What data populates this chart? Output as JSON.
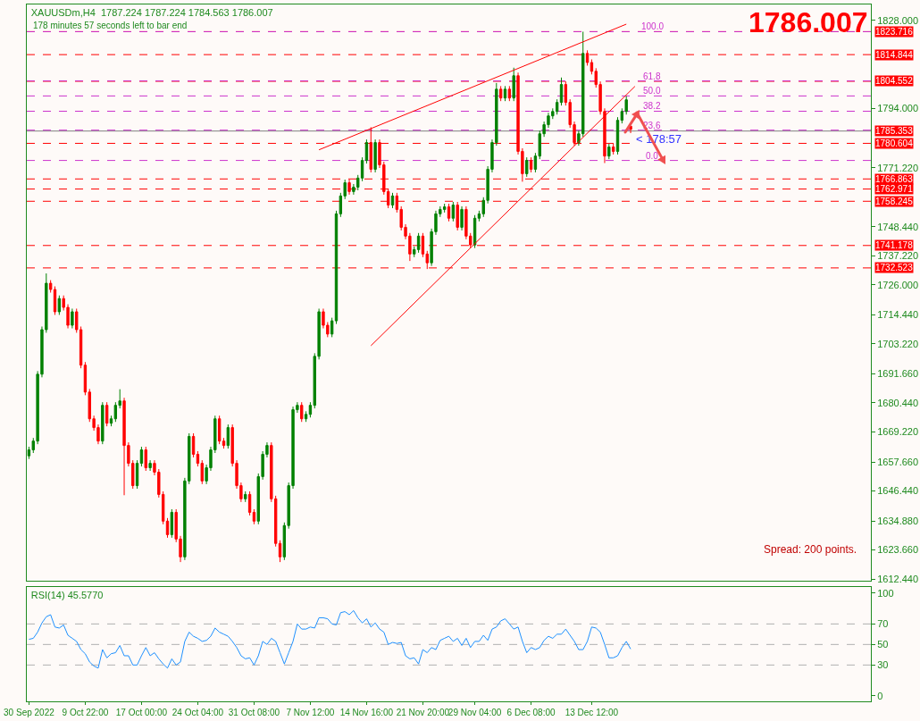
{
  "chart_data": [
    {
      "type": "candlestick",
      "title": "XAUUSDm,H4  1787.224 1787.224 1784.563 1786.007",
      "subtitle": "178 minutes 57 seconds left to bar end",
      "categories": [
        null,
        null,
        null,
        null,
        null,
        null,
        null,
        null,
        null,
        null,
        null,
        null,
        null,
        null,
        null,
        null,
        null,
        null,
        null,
        null,
        null,
        null,
        null,
        null,
        null,
        null,
        null,
        null,
        null,
        null,
        null,
        null,
        null,
        null,
        null,
        null,
        null,
        null,
        null,
        null,
        null,
        null,
        null,
        null,
        null,
        null,
        null,
        null,
        null,
        null,
        null,
        null,
        null,
        null,
        null,
        null,
        null,
        null,
        null,
        null,
        null,
        null,
        null,
        null,
        null,
        null,
        null,
        null,
        null,
        null,
        null,
        null,
        null,
        null,
        null,
        null,
        null,
        null,
        null,
        null,
        null,
        null,
        null,
        null,
        null,
        null,
        null,
        null,
        null,
        null,
        null,
        null,
        null,
        null,
        null,
        null,
        null,
        null,
        null,
        null,
        null,
        null,
        null,
        null,
        null,
        null,
        null,
        null,
        null,
        null,
        null,
        null,
        null,
        null,
        null,
        null,
        null,
        null,
        null,
        null,
        null,
        null,
        null,
        null,
        null,
        null,
        null,
        null,
        null,
        null,
        null,
        null,
        null,
        null,
        null,
        null,
        null,
        null,
        null,
        null,
        null,
        null,
        null,
        null,
        null,
        null,
        null,
        null,
        null,
        null,
        null,
        null,
        null,
        null,
        null,
        null,
        null,
        null,
        null,
        null,
        null,
        null,
        null,
        null,
        null,
        null,
        null,
        null,
        null,
        null,
        null,
        null,
        null,
        null,
        null,
        null,
        null,
        null,
        null,
        null,
        null,
        null,
        null,
        null,
        null,
        null,
        null,
        null,
        null,
        null,
        null,
        null,
        null,
        null,
        null
      ],
      "series": [
        {
          "ohlc": [
            [
              1660.0,
              1663.5,
              1658.8,
              1662.3
            ],
            [
              1662.3,
              1666.9,
              1661.1,
              1665.7
            ],
            [
              1665.7,
              1692.7,
              1664.5,
              1691.5
            ],
            [
              1691.5,
              1709.9,
              1690.3,
              1708.7
            ],
            [
              1708.7,
              1730.4,
              1707.5,
              1726.6
            ],
            [
              1726.6,
              1727.8,
              1723.0,
              1724.2
            ],
            [
              1724.2,
              1725.4,
              1714.4,
              1715.6
            ],
            [
              1715.6,
              1721.9,
              1714.4,
              1720.7
            ],
            [
              1720.7,
              1721.9,
              1716.1,
              1717.3
            ],
            [
              1717.3,
              1718.5,
              1709.2,
              1710.4
            ],
            [
              1710.4,
              1716.8,
              1709.2,
              1715.6
            ],
            [
              1715.6,
              1716.8,
              1707.5,
              1708.7
            ],
            [
              1708.7,
              1709.9,
              1693.8,
              1695.0
            ],
            [
              1695.0,
              1696.2,
              1683.4,
              1684.6
            ],
            [
              1684.6,
              1685.8,
              1673.1,
              1674.3
            ],
            [
              1674.3,
              1675.5,
              1669.7,
              1670.9
            ],
            [
              1670.9,
              1672.1,
              1664.5,
              1665.7
            ],
            [
              1665.7,
              1680.7,
              1664.5,
              1679.5
            ],
            [
              1679.5,
              1680.7,
              1671.4,
              1672.6
            ],
            [
              1672.6,
              1675.5,
              1671.4,
              1674.3
            ],
            [
              1674.3,
              1680.7,
              1673.1,
              1679.5
            ],
            [
              1679.5,
              1685.7,
              1678.3,
              1681.2
            ],
            [
              1681.2,
              1682.4,
              1644.8,
              1664.0
            ],
            [
              1664.0,
              1665.2,
              1655.9,
              1657.1
            ],
            [
              1657.1,
              1658.3,
              1647.3,
              1648.5
            ],
            [
              1648.5,
              1658.3,
              1647.3,
              1657.1
            ],
            [
              1657.1,
              1663.5,
              1655.9,
              1662.3
            ],
            [
              1662.3,
              1663.5,
              1654.2,
              1655.4
            ],
            [
              1655.4,
              1658.3,
              1654.2,
              1657.1
            ],
            [
              1657.1,
              1658.3,
              1652.5,
              1653.7
            ],
            [
              1653.7,
              1654.9,
              1643.9,
              1645.1
            ],
            [
              1645.1,
              1646.3,
              1633.6,
              1634.8
            ],
            [
              1634.8,
              1636.0,
              1628.4,
              1629.6
            ],
            [
              1629.6,
              1639.4,
              1628.4,
              1638.2
            ],
            [
              1638.2,
              1639.4,
              1626.7,
              1627.9
            ],
            [
              1627.9,
              1629.1,
              1619.0,
              1621.0
            ],
            [
              1621.0,
              1651.5,
              1619.8,
              1650.3
            ],
            [
              1650.3,
              1668.7,
              1649.1,
              1667.5
            ],
            [
              1667.5,
              1668.7,
              1659.4,
              1660.6
            ],
            [
              1660.6,
              1661.8,
              1655.9,
              1657.1
            ],
            [
              1657.1,
              1658.3,
              1649.1,
              1650.3
            ],
            [
              1650.3,
              1656.6,
              1649.1,
              1655.4
            ],
            [
              1655.4,
              1663.5,
              1654.2,
              1662.3
            ],
            [
              1662.3,
              1675.5,
              1661.1,
              1674.3
            ],
            [
              1674.3,
              1675.5,
              1664.5,
              1665.7
            ],
            [
              1665.7,
              1666.9,
              1662.8,
              1664.0
            ],
            [
              1664.0,
              1672.1,
              1662.8,
              1670.9
            ],
            [
              1670.9,
              1672.1,
              1655.9,
              1657.1
            ],
            [
              1657.1,
              1658.3,
              1647.3,
              1648.5
            ],
            [
              1648.5,
              1649.7,
              1642.2,
              1643.4
            ],
            [
              1643.4,
              1646.3,
              1642.2,
              1645.1
            ],
            [
              1645.1,
              1646.3,
              1637.0,
              1638.2
            ],
            [
              1638.2,
              1639.4,
              1633.6,
              1634.8
            ],
            [
              1634.8,
              1653.2,
              1633.6,
              1652.0
            ],
            [
              1652.0,
              1661.8,
              1650.8,
              1660.6
            ],
            [
              1660.6,
              1665.2,
              1659.4,
              1664.0
            ],
            [
              1664.0,
              1665.2,
              1642.2,
              1643.4
            ],
            [
              1643.4,
              1644.6,
              1625.0,
              1626.2
            ],
            [
              1626.2,
              1627.4,
              1619.0,
              1621.0
            ],
            [
              1621.0,
              1634.3,
              1619.8,
              1633.1
            ],
            [
              1633.1,
              1649.7,
              1631.9,
              1648.5
            ],
            [
              1648.5,
              1679.0,
              1647.3,
              1677.8
            ],
            [
              1677.8,
              1680.7,
              1676.6,
              1679.5
            ],
            [
              1679.5,
              1680.7,
              1673.1,
              1674.3
            ],
            [
              1674.3,
              1677.2,
              1673.1,
              1676.0
            ],
            [
              1676.0,
              1680.7,
              1674.8,
              1679.5
            ],
            [
              1679.5,
              1699.6,
              1678.3,
              1698.4
            ],
            [
              1698.4,
              1716.8,
              1697.2,
              1715.6
            ],
            [
              1715.6,
              1716.8,
              1709.2,
              1710.4
            ],
            [
              1710.4,
              1711.6,
              1705.8,
              1707.0
            ],
            [
              1707.0,
              1713.3,
              1705.8,
              1712.1
            ],
            [
              1712.1,
              1754.6,
              1710.9,
              1753.4
            ],
            [
              1753.4,
              1761.5,
              1752.2,
              1760.3
            ],
            [
              1760.3,
              1766.6,
              1759.1,
              1765.4
            ],
            [
              1765.4,
              1766.6,
              1760.8,
              1762.0
            ],
            [
              1762.0,
              1764.9,
              1760.8,
              1763.7
            ],
            [
              1763.7,
              1768.4,
              1762.5,
              1767.2
            ],
            [
              1767.2,
              1775.2,
              1766.0,
              1774.0
            ],
            [
              1774.0,
              1782.1,
              1772.8,
              1780.9
            ],
            [
              1780.9,
              1786.8,
              1769.4,
              1770.6
            ],
            [
              1770.6,
              1782.1,
              1769.4,
              1780.9
            ],
            [
              1780.9,
              1782.1,
              1771.1,
              1772.3
            ],
            [
              1772.3,
              1773.5,
              1760.8,
              1762.0
            ],
            [
              1762.0,
              1763.2,
              1755.6,
              1756.8
            ],
            [
              1756.8,
              1761.5,
              1755.6,
              1760.3
            ],
            [
              1760.3,
              1761.5,
              1753.9,
              1755.1
            ],
            [
              1755.1,
              1756.3,
              1747.0,
              1748.2
            ],
            [
              1748.2,
              1749.4,
              1743.6,
              1744.8
            ],
            [
              1744.8,
              1746.0,
              1735.2,
              1737.9
            ],
            [
              1737.9,
              1740.8,
              1736.7,
              1739.6
            ],
            [
              1739.6,
              1746.0,
              1738.4,
              1744.8
            ],
            [
              1744.8,
              1746.0,
              1736.7,
              1737.9
            ],
            [
              1737.9,
              1739.1,
              1732.1,
              1734.5
            ],
            [
              1734.5,
              1747.7,
              1733.3,
              1746.5
            ],
            [
              1746.5,
              1754.6,
              1745.3,
              1753.4
            ],
            [
              1753.4,
              1756.3,
              1752.2,
              1755.1
            ],
            [
              1755.1,
              1757.3,
              1753.9,
              1756.1
            ],
            [
              1756.1,
              1757.3,
              1750.5,
              1751.7
            ],
            [
              1751.7,
              1758.0,
              1750.5,
              1756.8
            ],
            [
              1756.8,
              1758.0,
              1747.0,
              1748.2
            ],
            [
              1748.2,
              1756.3,
              1747.0,
              1755.1
            ],
            [
              1755.1,
              1756.3,
              1743.6,
              1744.8
            ],
            [
              1744.8,
              1746.0,
              1740.2,
              1741.4
            ],
            [
              1741.4,
              1752.9,
              1740.2,
              1751.7
            ],
            [
              1751.7,
              1754.6,
              1750.5,
              1753.4
            ],
            [
              1753.4,
              1759.8,
              1752.2,
              1758.6
            ],
            [
              1758.6,
              1771.8,
              1757.4,
              1770.6
            ],
            [
              1770.6,
              1782.1,
              1769.4,
              1780.9
            ],
            [
              1780.9,
              1803.9,
              1779.7,
              1801.5
            ],
            [
              1801.5,
              1802.7,
              1796.9,
              1798.1
            ],
            [
              1798.1,
              1802.7,
              1796.9,
              1801.5
            ],
            [
              1801.5,
              1802.7,
              1796.9,
              1798.1
            ],
            [
              1798.1,
              1809.8,
              1796.9,
              1806.7
            ],
            [
              1806.7,
              1807.9,
              1776.3,
              1777.5
            ],
            [
              1777.5,
              1778.7,
              1765.8,
              1768.9
            ],
            [
              1768.9,
              1775.2,
              1767.7,
              1774.0
            ],
            [
              1774.0,
              1775.2,
              1769.4,
              1770.6
            ],
            [
              1770.6,
              1776.9,
              1769.4,
              1775.7
            ],
            [
              1775.7,
              1785.5,
              1774.5,
              1784.3
            ],
            [
              1784.3,
              1789.0,
              1783.1,
              1787.8
            ],
            [
              1787.8,
              1792.4,
              1786.6,
              1791.2
            ],
            [
              1791.2,
              1794.1,
              1790.0,
              1792.9
            ],
            [
              1792.9,
              1797.6,
              1791.7,
              1796.4
            ],
            [
              1796.4,
              1806.0,
              1795.2,
              1803.3
            ],
            [
              1803.3,
              1804.5,
              1795.2,
              1796.4
            ],
            [
              1796.4,
              1797.6,
              1786.6,
              1787.8
            ],
            [
              1787.8,
              1789.0,
              1779.7,
              1780.9
            ],
            [
              1780.9,
              1785.5,
              1779.7,
              1784.3
            ],
            [
              1784.3,
              1823.7,
              1783.1,
              1815.3
            ],
            [
              1815.3,
              1816.5,
              1810.6,
              1811.8
            ],
            [
              1811.8,
              1813.0,
              1807.2,
              1808.4
            ],
            [
              1808.4,
              1809.6,
              1802.1,
              1803.3
            ],
            [
              1803.3,
              1804.5,
              1791.7,
              1792.9
            ],
            [
              1792.9,
              1794.1,
              1773.0,
              1775.7
            ],
            [
              1775.7,
              1780.4,
              1774.5,
              1779.2
            ],
            [
              1779.2,
              1780.4,
              1776.3,
              1777.5
            ],
            [
              1777.5,
              1790.7,
              1776.3,
              1789.5
            ],
            [
              1789.5,
              1794.1,
              1788.3,
              1792.9
            ],
            [
              1792.9,
              1798.8,
              1791.7,
              1797.4
            ],
            [
              1787.224,
              1787.224,
              1784.563,
              1786.007
            ],
            null,
            null,
            null,
            null,
            null,
            null,
            null,
            null,
            null,
            null,
            null,
            null,
            null,
            null,
            null,
            null,
            null,
            null,
            null,
            null,
            null,
            null,
            null,
            null,
            null,
            null,
            null,
            null,
            null,
            null,
            null,
            null,
            null,
            null,
            null,
            null,
            null,
            null,
            null,
            null,
            null,
            null,
            null,
            null,
            null,
            null,
            null,
            null,
            null,
            null,
            null,
            null,
            null,
            null,
            null
          ]
        },
        {
          "type": "line",
          "color": "#ff0000",
          "values": [
            null,
            null,
            null,
            null,
            null,
            null,
            null,
            null,
            null,
            null,
            null,
            null,
            null,
            null,
            null,
            null,
            null,
            null,
            null,
            null,
            null,
            null,
            null,
            null,
            null,
            null,
            null,
            null,
            null,
            null,
            null,
            null,
            null,
            null,
            null,
            null,
            null,
            null,
            null,
            null,
            null,
            null,
            null,
            null,
            null,
            null,
            null,
            null,
            null,
            null,
            null,
            null,
            null,
            null,
            null,
            null,
            null,
            null,
            null,
            null,
            null,
            null,
            null,
            null,
            null,
            null,
            null,
            1778.1,
            null,
            null,
            null,
            null,
            null,
            null,
            null,
            null,
            null,
            null,
            null,
            null,
            null,
            null,
            null,
            null,
            null,
            null,
            null,
            null,
            null,
            null,
            null,
            null,
            null,
            null,
            null,
            null,
            null,
            null,
            null,
            null,
            null,
            null,
            null,
            null,
            null,
            null,
            null,
            null,
            null,
            null,
            null,
            null,
            null,
            null,
            null,
            null,
            null,
            null,
            null,
            null,
            null,
            null,
            null,
            null,
            null,
            null,
            null,
            null,
            null,
            null,
            null,
            null,
            null,
            null,
            null,
            null,
            null,
            null,
            1826.6,
            null,
            null,
            null,
            null,
            null,
            null,
            null,
            null,
            null,
            null,
            null,
            null,
            null,
            null,
            null,
            null,
            null,
            null,
            null,
            null,
            null,
            null,
            null,
            null,
            null,
            null,
            null,
            null,
            null,
            null,
            null,
            null,
            null,
            null,
            null,
            null,
            null,
            null,
            null,
            null,
            null,
            null,
            null,
            null,
            null,
            null,
            null,
            null,
            null,
            null,
            null,
            null,
            null,
            null,
            null,
            null
          ]
        },
        {
          "type": "line",
          "color": "#ff0000",
          "values": [
            null,
            null,
            null,
            null,
            null,
            null,
            null,
            null,
            null,
            null,
            null,
            null,
            null,
            null,
            null,
            null,
            null,
            null,
            null,
            null,
            null,
            null,
            null,
            null,
            null,
            null,
            null,
            null,
            null,
            null,
            null,
            null,
            null,
            null,
            null,
            null,
            null,
            null,
            null,
            null,
            null,
            null,
            null,
            null,
            null,
            null,
            null,
            null,
            null,
            null,
            null,
            null,
            null,
            null,
            null,
            null,
            null,
            null,
            null,
            null,
            null,
            null,
            null,
            null,
            null,
            null,
            null,
            null,
            null,
            null,
            null,
            null,
            null,
            null,
            null,
            null,
            null,
            null,
            null,
            1702.5,
            null,
            null,
            null,
            null,
            null,
            null,
            null,
            null,
            null,
            null,
            null,
            null,
            null,
            null,
            null,
            null,
            null,
            null,
            null,
            null,
            null,
            null,
            null,
            null,
            null,
            null,
            null,
            null,
            null,
            null,
            null,
            null,
            null,
            null,
            null,
            null,
            null,
            null,
            null,
            null,
            null,
            null,
            null,
            null,
            null,
            null,
            null,
            null,
            null,
            null,
            null,
            null,
            null,
            null,
            null,
            null,
            null,
            null,
            null,
            null,
            1802.6,
            null,
            null,
            null,
            null,
            null,
            null,
            null,
            null,
            null,
            null,
            null,
            null,
            null,
            null,
            null,
            null,
            null,
            null,
            null,
            null,
            null,
            null,
            null,
            null,
            null,
            null,
            null,
            null,
            null,
            null,
            null,
            null,
            null,
            null,
            null,
            null,
            null,
            null,
            null,
            null,
            null,
            null,
            null,
            null,
            null,
            null,
            null,
            null,
            null,
            null,
            null,
            null,
            null,
            null
          ]
        }
      ],
      "ylim": [
        1611.8,
        1834.2
      ],
      "yticks": [
        {
          "value": 1828,
          "label": "1828.000"
        },
        {
          "value": 1794,
          "label": "1794.000"
        },
        {
          "value": 1771.22,
          "label": "1771.220"
        },
        {
          "value": 1748.44,
          "label": "1748.440"
        },
        {
          "value": 1737.22,
          "label": "1737.220"
        },
        {
          "value": 1726,
          "label": "1726.000"
        },
        {
          "value": 1714.44,
          "label": "1714.440"
        },
        {
          "value": 1703.22,
          "label": "1703.220"
        },
        {
          "value": 1691.66,
          "label": "1691.660"
        },
        {
          "value": 1680.44,
          "label": "1680.440"
        },
        {
          "value": 1669.22,
          "label": "1669.220"
        },
        {
          "value": 1657.66,
          "label": "1657.660"
        },
        {
          "value": 1646.44,
          "label": "1646.440"
        },
        {
          "value": 1634.88,
          "label": "1634.880"
        },
        {
          "value": 1623.66,
          "label": "1623.660"
        },
        {
          "value": 1612.44,
          "label": "1612.440"
        }
      ],
      "tick_labels": "y",
      "ref_lines": [
        {
          "axis": "y",
          "value": 1823.716,
          "label": "1823.716",
          "color": "#ff0000",
          "line_style": "dashed"
        },
        {
          "axis": "y",
          "value": 1814.844,
          "label": "1814.844",
          "color": "#ff0000",
          "line_style": "dashed"
        },
        {
          "axis": "y",
          "value": 1804.552,
          "label": "1804.552",
          "color": "#ff0000",
          "line_style": "dashed"
        },
        {
          "axis": "y",
          "value": 1785.353,
          "label": "1785.353",
          "color": "#808080",
          "line_style": "solid"
        },
        {
          "axis": "y",
          "value": 1780.604,
          "label": "1780.604",
          "color": "#ff0000",
          "line_style": "dashed"
        },
        {
          "axis": "y",
          "value": 1766.863,
          "label": "1766.863",
          "color": "#ff0000",
          "line_style": "dashed"
        },
        {
          "axis": "y",
          "value": 1762.971,
          "label": "1762.971",
          "color": "#ff0000",
          "line_style": "dashed"
        },
        {
          "axis": "y",
          "value": 1758.245,
          "label": "1758.245",
          "color": "#ff0000",
          "line_style": "dashed"
        },
        {
          "axis": "y",
          "value": 1741.178,
          "label": "1741.178",
          "color": "#ff0000",
          "line_style": "dashed"
        },
        {
          "axis": "y",
          "value": 1732.523,
          "label": "1732.523",
          "color": "#ff0000",
          "line_style": "dashed"
        },
        {
          "axis": "y",
          "value": 1823.7,
          "color": "#cc33cc",
          "line_style": "dashed"
        },
        {
          "axis": "y",
          "value": 1804.7,
          "color": "#cc33cc",
          "line_style": "dashed"
        },
        {
          "axis": "y",
          "value": 1798.9,
          "color": "#cc33cc",
          "line_style": "dashed"
        },
        {
          "axis": "y",
          "value": 1793.0,
          "color": "#cc33cc",
          "line_style": "dashed"
        },
        {
          "axis": "y",
          "value": 1785.7,
          "color": "#cc33cc",
          "line_style": "dashed"
        },
        {
          "axis": "y",
          "value": 1774.0,
          "color": "#cc33cc",
          "line_style": "dashed"
        }
      ],
      "annotations": [
        "1786.007",
        "Spread: 200 points.",
        {
          "text": "< 178:57",
          "y": 1785.353
        },
        {
          "text": "100.0",
          "y": 1823.7
        },
        {
          "text": "61.8",
          "y": 1804.7
        },
        {
          "text": "50.0",
          "y": 1798.9
        },
        {
          "text": "38.2",
          "y": 1793.0
        },
        {
          "text": "23.6",
          "y": 1785.7
        },
        {
          "text": "0.0",
          "y": 1774.0
        }
      ]
    },
    {
      "type": "line",
      "title": "RSI(14) 45.5770",
      "categories": [
        "30 Sep 2022",
        null,
        null,
        null,
        null,
        null,
        null,
        null,
        null,
        null,
        null,
        null,
        null,
        "9 Oct 22:00",
        null,
        null,
        null,
        null,
        null,
        null,
        null,
        null,
        null,
        null,
        null,
        null,
        "17 Oct 00:00",
        null,
        null,
        null,
        null,
        null,
        null,
        null,
        null,
        null,
        null,
        null,
        null,
        "24 Oct 04:00",
        null,
        null,
        null,
        null,
        null,
        null,
        null,
        null,
        null,
        null,
        null,
        null,
        "31 Oct 08:00",
        null,
        null,
        null,
        null,
        null,
        null,
        null,
        null,
        null,
        null,
        null,
        null,
        "7 Nov 12:00",
        null,
        null,
        null,
        null,
        null,
        null,
        null,
        null,
        null,
        null,
        null,
        null,
        "14 Nov 16:00",
        null,
        null,
        null,
        null,
        null,
        null,
        null,
        null,
        null,
        null,
        null,
        null,
        "21 Nov 20:00",
        null,
        null,
        null,
        null,
        null,
        null,
        null,
        null,
        null,
        null,
        null,
        "29 Nov 04:00",
        null,
        null,
        null,
        null,
        null,
        null,
        null,
        null,
        null,
        null,
        null,
        null,
        "6 Dec 08:00",
        null,
        null,
        null,
        null,
        null,
        null,
        null,
        null,
        null,
        null,
        null,
        null,
        null,
        "13 Dec 12:00",
        null,
        null,
        null,
        null,
        null,
        null,
        null,
        null,
        null,
        null,
        null,
        null,
        null,
        null,
        null,
        null,
        null,
        null,
        null,
        null,
        null,
        null,
        null,
        null,
        null,
        null,
        null,
        null,
        null,
        null,
        null,
        null,
        null,
        null,
        null,
        null,
        null,
        null,
        null,
        null,
        null,
        null,
        null,
        null,
        null,
        null,
        null,
        null,
        null,
        null,
        null,
        null,
        null,
        null,
        null,
        null,
        null,
        null,
        null,
        null,
        null,
        null,
        null,
        null
      ],
      "series": [
        {
          "color": "#1e90ff",
          "values": [
            55,
            56,
            62,
            71,
            77,
            79,
            67,
            66,
            69,
            59,
            56,
            53,
            45,
            41,
            33,
            29,
            27,
            45,
            37,
            41,
            42,
            49,
            39,
            39,
            30,
            30,
            39,
            47,
            39,
            42,
            36,
            31,
            27,
            36,
            30,
            33,
            53,
            62,
            58,
            56,
            53,
            54,
            58,
            66,
            62,
            60,
            58,
            53,
            47,
            39,
            36,
            37,
            30,
            39,
            53,
            50,
            56,
            53,
            42,
            31,
            42,
            53,
            70,
            65,
            65,
            67,
            66,
            76,
            76,
            75,
            70,
            69,
            81,
            82,
            79,
            83,
            76,
            71,
            75,
            67,
            71,
            65,
            62,
            50,
            52,
            51,
            52,
            39,
            36,
            37,
            31,
            45,
            42,
            47,
            45,
            54,
            56,
            58,
            53,
            56,
            49,
            56,
            47,
            53,
            53,
            59,
            54,
            65,
            67,
            73,
            75,
            70,
            65,
            67,
            53,
            42,
            47,
            45,
            47,
            54,
            58,
            56,
            60,
            60,
            65,
            59,
            53,
            45,
            45,
            53,
            67,
            66,
            62,
            50,
            37,
            37,
            39,
            47,
            53,
            45.577,
            null,
            null,
            null,
            null,
            null,
            null,
            null,
            null,
            null,
            null,
            null,
            null,
            null,
            null,
            null,
            null,
            null,
            null,
            null,
            null,
            null,
            null,
            null,
            null,
            null,
            null,
            null,
            null,
            null,
            null,
            null,
            null,
            null,
            null,
            null,
            null,
            null,
            null,
            null,
            null,
            null,
            null,
            null,
            null,
            null,
            null,
            null,
            null,
            null,
            null,
            null,
            null,
            null,
            null,
            null
          ]
        }
      ],
      "ylim": [
        -5.4,
        106
      ],
      "yticks": [
        0,
        30,
        50,
        70,
        100
      ],
      "ref_lines": [
        {
          "axis": "y",
          "value": 70,
          "color": "#b0b0b0",
          "line_style": "dashed"
        },
        {
          "axis": "y",
          "value": 50,
          "color": "#b0b0b0",
          "line_style": "dashed"
        },
        {
          "axis": "y",
          "value": 30,
          "color": "#b0b0b0",
          "line_style": "dashed"
        }
      ]
    }
  ]
}
